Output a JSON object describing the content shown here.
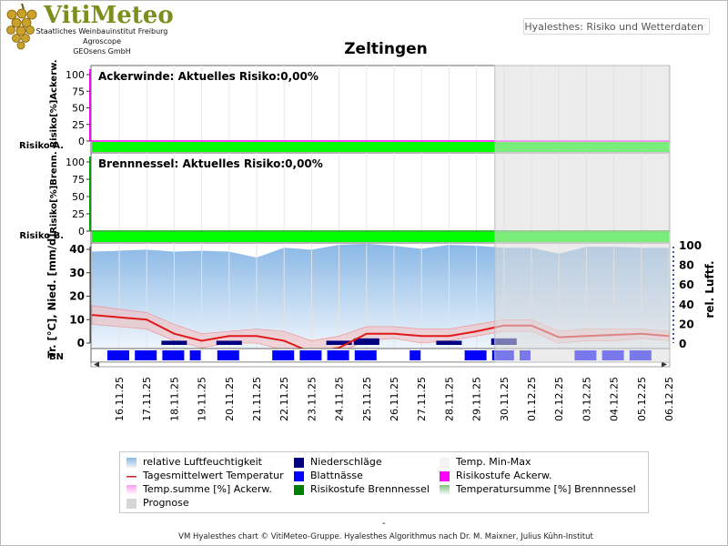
{
  "brand": {
    "title": "VitiMeteo",
    "lines": [
      "Staatliches Weinbauinstitut Freiburg",
      "Agroscope",
      "GEOsens GmbH"
    ]
  },
  "header": {
    "tag": "Hyalesthes: Risiko und Wetterdaten"
  },
  "page_title": "Zeltingen",
  "footer": {
    "dash": "-",
    "credit": "VM Hyalesthes chart © VitiMeteo-Gruppe. Hyalesthes Algorithmus nach Dr. M. Maixner, Julius Kühn-Institut"
  },
  "colors": {
    "humidity": "#9cc6ea",
    "temp_line": "#e01a1a",
    "temp_band": "#f4b9b9",
    "precip": "#000080",
    "leafwet": "#0000ff",
    "risk_ackerw": "#ff00ff",
    "risk_brenn": "#00a000",
    "risk_band": "#00ff00",
    "prognose": "#dcdcdc"
  },
  "legend": [
    {
      "label": "relative Luftfeuchtigkeit",
      "icon": "gradient-blue-swatch"
    },
    {
      "label": "Niederschläge",
      "icon": "navy-swatch"
    },
    {
      "label": "Temp. Min-Max",
      "icon": "light-swatch"
    },
    {
      "label": "Tagesmittelwert Temperatur",
      "icon": "red-line-swatch"
    },
    {
      "label": "Blattnässe",
      "icon": "blue-swatch"
    },
    {
      "label": "Risikostufe Ackerw.",
      "icon": "magenta-swatch"
    },
    {
      "label": "Temp.summe [%] Ackerw.",
      "icon": "pink-gradient-swatch"
    },
    {
      "label": "Risikostufe Brennnessel",
      "icon": "green-swatch"
    },
    {
      "label": "Temperatursumme [%] Brennnessel",
      "icon": "green-gradient-swatch"
    },
    {
      "label": "Prognose",
      "icon": "grey-swatch"
    }
  ],
  "chart_data": [
    {
      "type": "area",
      "panel": "Ackerwinde",
      "title": "Ackerwinde: Aktuelles Risiko:0,00%",
      "ylabel": "Risiko[%]Ackerw.",
      "row_label": "Risiko A.",
      "yticks": [
        0,
        25,
        50,
        75,
        100
      ],
      "ylim": [
        0,
        100
      ],
      "risk_level": "low",
      "x": [
        "16.11.25",
        "17.11.25",
        "18.11.25",
        "19.11.25",
        "20.11.25",
        "21.11.25",
        "22.11.25",
        "23.11.25",
        "24.11.25",
        "25.11.25",
        "26.11.25",
        "27.11.25",
        "28.11.25",
        "29.11.25",
        "30.11.25",
        "01.12.25",
        "02.12.25",
        "03.12.25",
        "04.12.25",
        "05.12.25",
        "06.12.25"
      ],
      "values": [
        0,
        0,
        0,
        0,
        0,
        0,
        0,
        0,
        0,
        0,
        0,
        0,
        0,
        0,
        0,
        0,
        0,
        0,
        0,
        0,
        0
      ]
    },
    {
      "type": "area",
      "panel": "Brennnessel",
      "title": "Brennnessel: Aktuelles Risiko:0,00%",
      "ylabel": "Risiko[%]Brenn.",
      "row_label": "Risiko B.",
      "yticks": [
        0,
        25,
        50,
        75,
        100
      ],
      "ylim": [
        0,
        100
      ],
      "risk_level": "low",
      "x": [
        "16.11.25",
        "17.11.25",
        "18.11.25",
        "19.11.25",
        "20.11.25",
        "21.11.25",
        "22.11.25",
        "23.11.25",
        "24.11.25",
        "25.11.25",
        "26.11.25",
        "27.11.25",
        "28.11.25",
        "29.11.25",
        "30.11.25",
        "01.12.25",
        "02.12.25",
        "03.12.25",
        "04.12.25",
        "05.12.25",
        "06.12.25"
      ],
      "values": [
        0,
        0,
        0,
        0,
        0,
        0,
        0,
        0,
        0,
        0,
        0,
        0,
        0,
        0,
        0,
        0,
        0,
        0,
        0,
        0,
        0
      ]
    },
    {
      "type": "line",
      "panel": "Wetter",
      "ylabel": "Tr. [°C], Nied. [mm/d]",
      "ylabel_right": "rel. Luftf.",
      "row_label": "BN",
      "ylim": [
        0,
        40
      ],
      "yticks": [
        0,
        10,
        20,
        30,
        40
      ],
      "ylim_right": [
        0,
        100
      ],
      "yticks_right": [
        0,
        20,
        40,
        60,
        80,
        100
      ],
      "x": [
        "16.11.25",
        "17.11.25",
        "18.11.25",
        "19.11.25",
        "20.11.25",
        "21.11.25",
        "22.11.25",
        "23.11.25",
        "24.11.25",
        "25.11.25",
        "26.11.25",
        "27.11.25",
        "28.11.25",
        "29.11.25",
        "30.11.25",
        "01.12.25",
        "02.12.25",
        "03.12.25",
        "04.12.25",
        "05.12.25",
        "06.12.25"
      ],
      "prognose_from": "30.11.25",
      "series": [
        {
          "name": "relative Luftfeuchtigkeit",
          "axis": "right",
          "values": [
            93,
            95,
            93,
            94,
            93,
            87,
            97,
            95,
            100,
            101,
            99,
            96,
            100,
            99,
            97,
            97,
            91,
            98,
            98,
            97,
            97
          ]
        },
        {
          "name": "Tagesmittelwert Temperatur",
          "axis": "left",
          "values": [
            12,
            10,
            4,
            1,
            3,
            3,
            1,
            -4,
            -2,
            4,
            4,
            3,
            3,
            5,
            7.5,
            7.5,
            2.5,
            3,
            3.5,
            4,
            3
          ]
        },
        {
          "name": "Temp. Min-Max (max)",
          "axis": "left",
          "values": [
            16,
            13,
            8,
            4,
            5,
            6,
            5,
            1,
            3,
            7,
            7,
            6,
            6,
            8,
            10,
            10,
            5,
            6,
            6,
            6,
            5
          ]
        },
        {
          "name": "Temp. Min-Max (min)",
          "axis": "left",
          "values": [
            8,
            6,
            1,
            -2,
            0,
            0,
            -3,
            -6,
            -4,
            1,
            2,
            0,
            1,
            3,
            5,
            5,
            0,
            1,
            1,
            2,
            1
          ]
        },
        {
          "name": "Niederschläge",
          "axis": "left",
          "values": [
            0,
            0,
            1,
            0,
            1,
            0,
            0,
            0,
            1,
            2,
            0,
            0,
            1,
            0,
            2,
            0,
            0,
            0,
            0,
            0,
            0
          ]
        }
      ],
      "leafwetness": [
        1,
        1,
        1,
        0.5,
        1,
        0,
        1,
        1,
        1,
        1,
        0,
        0.5,
        0,
        1,
        1,
        0.5,
        0,
        1,
        1,
        1,
        0
      ]
    }
  ]
}
